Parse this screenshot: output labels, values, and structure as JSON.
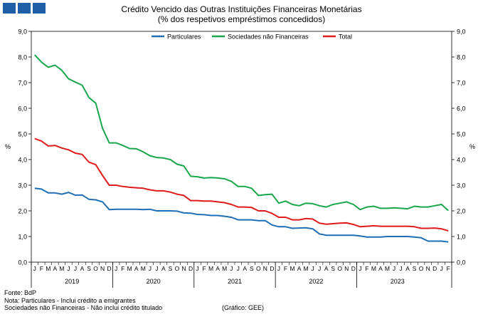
{
  "header": {
    "title": "Crédito Vencido das Outras Instituições Financeiras Monetárias",
    "subtitle": "(% dos respetivos empréstimos concedidos)"
  },
  "footer": {
    "source": "Fonte: BdP",
    "note1": "Nota: Particulares - Inclui crédito a emigrantes",
    "note2": "Sociedades não Financeiras - Não inclui crédito titulado",
    "chart_credit": "(Gráfico: GEE)"
  },
  "colors": {
    "particulares": "#1f6fb5",
    "sociedades": "#1aa64a",
    "total": "#e01b1b",
    "logo": "#1f5fa8"
  },
  "chart_data": {
    "type": "line",
    "ylabel_left": "%",
    "ylabel_right": "%",
    "ylim": [
      0,
      9
    ],
    "yticks": [
      "0,0",
      "1,0",
      "2,0",
      "3,0",
      "4,0",
      "5,0",
      "6,0",
      "7,0",
      "8,0",
      "9,0"
    ],
    "month_labels": [
      "J",
      "F",
      "M",
      "A",
      "M",
      "J",
      "J",
      "A",
      "S",
      "O",
      "N",
      "D"
    ],
    "years": [
      "2019",
      "2020",
      "2021",
      "2022",
      "2023"
    ],
    "legend_position": "top",
    "grid": false,
    "series": [
      {
        "name": "Particulares",
        "values": [
          2.88,
          2.85,
          2.7,
          2.7,
          2.65,
          2.72,
          2.61,
          2.62,
          2.45,
          2.43,
          2.35,
          2.05,
          2.06,
          2.06,
          2.06,
          2.06,
          2.05,
          2.06,
          2.0,
          2.0,
          2.0,
          1.99,
          1.92,
          1.91,
          1.86,
          1.85,
          1.82,
          1.82,
          1.79,
          1.75,
          1.65,
          1.65,
          1.65,
          1.62,
          1.62,
          1.45,
          1.38,
          1.38,
          1.32,
          1.33,
          1.34,
          1.3,
          1.1,
          1.05,
          1.05,
          1.05,
          1.05,
          1.05,
          1.02,
          0.98,
          0.98,
          0.98,
          1.0,
          1.0,
          1.0,
          1.0,
          0.98,
          0.95,
          0.82,
          0.82,
          0.82,
          0.79
        ]
      },
      {
        "name": "Sociedades não Financeiras",
        "values": [
          8.08,
          7.8,
          7.6,
          7.68,
          7.48,
          7.15,
          7.02,
          6.9,
          6.42,
          6.2,
          5.22,
          4.65,
          4.65,
          4.55,
          4.43,
          4.42,
          4.3,
          4.15,
          4.08,
          4.06,
          4.0,
          3.82,
          3.75,
          3.35,
          3.33,
          3.28,
          3.3,
          3.28,
          3.25,
          3.15,
          2.95,
          2.95,
          2.88,
          2.6,
          2.63,
          2.65,
          2.3,
          2.38,
          2.25,
          2.2,
          2.3,
          2.28,
          2.2,
          2.15,
          2.25,
          2.3,
          2.35,
          2.25,
          2.05,
          2.15,
          2.18,
          2.1,
          2.1,
          2.12,
          2.1,
          2.08,
          2.18,
          2.15,
          2.15,
          2.2,
          2.25,
          2.01
        ]
      },
      {
        "name": "Total",
        "values": [
          4.82,
          4.72,
          4.53,
          4.55,
          4.45,
          4.38,
          4.25,
          4.2,
          3.9,
          3.8,
          3.38,
          3.0,
          3.0,
          2.95,
          2.92,
          2.9,
          2.88,
          2.82,
          2.78,
          2.78,
          2.73,
          2.65,
          2.6,
          2.4,
          2.4,
          2.38,
          2.38,
          2.35,
          2.32,
          2.25,
          2.15,
          2.15,
          2.13,
          2.0,
          2.0,
          1.9,
          1.75,
          1.75,
          1.65,
          1.65,
          1.7,
          1.68,
          1.52,
          1.48,
          1.5,
          1.52,
          1.53,
          1.47,
          1.38,
          1.4,
          1.42,
          1.4,
          1.4,
          1.4,
          1.4,
          1.4,
          1.38,
          1.32,
          1.32,
          1.33,
          1.3,
          1.22
        ]
      }
    ]
  }
}
